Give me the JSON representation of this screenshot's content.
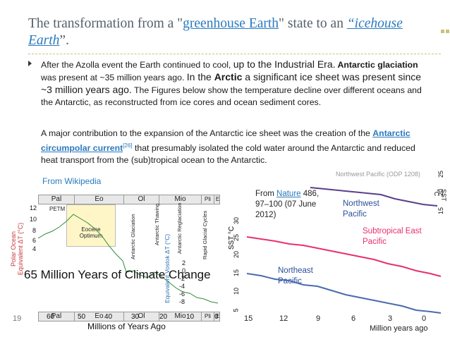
{
  "title": {
    "part1": "The transformation from a \"",
    "link1": "greenhouse Earth",
    "part2": "\" state to an ",
    "link2": "“icehouse Earth",
    "part3": "”."
  },
  "bullet": {
    "t1": "After the Azolla event the Earth continued to cool, ",
    "t2": "up to the Industrial Era.",
    "t3": "  Antarctic glaciation",
    "t4": " was present at ~35 million years ago. ",
    "t5": "In the ",
    "t6": "Arctic",
    "t7": " a significant  ice sheet was present since ~3 million years ago.",
    "t8": " The Figures below show the temperature decline over different oceans and the  Antarctic, as reconstructed from ice cores and ocean sediment cores."
  },
  "para2": {
    "t1": "A major contribution to the expansion of the Antarctic ice sheet was the creation of the ",
    "link": "Antarctic circumpolar current",
    "ref": "[26]",
    "t2": " that presumably isolated the cold water around the Antarctic and reduced heat transport from the (sub)tropical ocean to the  Antarctic."
  },
  "wiki": "From Wikipedia",
  "slide_number": "19",
  "left_figure": {
    "epochs": [
      "Pal",
      "Eo",
      "Ol",
      "Mio",
      "Pli",
      "E"
    ],
    "ylabel_top": "Polar Ocean Equivalent  ΔT (°C)",
    "yticks_top": [
      "12",
      "10",
      "8",
      "6",
      "4"
    ],
    "yticks_bottom": [
      "2",
      "0",
      "-2",
      "-4",
      "-6",
      "-8"
    ],
    "ylabel_bottom": "Equivalent Vostok ΔT (°C)",
    "xticks": [
      "60",
      "50",
      "40",
      "30",
      "20",
      "10",
      "0"
    ],
    "xlabel": "Millions of Years Ago",
    "big_label": "65 Million Years of Climate Change",
    "petm": "PETM",
    "eocene_optimum": "Eocene Optimum",
    "events": [
      "Antarctic Glaciation",
      "Antarctic Thawing",
      "Antarctic Reglaciation",
      "Rapid Glacial Cycles"
    ]
  },
  "right_figure": {
    "source_prefix": "From ",
    "source_link": "Nature",
    "source_rest": " 486, 97–100 (07 June 2012)",
    "series": [
      {
        "name": "Northwest Pacific",
        "color": "#5a3f8c"
      },
      {
        "name": "Subtropical East Pacific",
        "color": "#e8306e"
      },
      {
        "name": "Northeast Pacific",
        "color": "#4a6ab0"
      }
    ],
    "ylabel": "SST °C",
    "yticks": [
      "5",
      "10",
      "15",
      "20",
      "25",
      "30"
    ],
    "ylabel_right": "SST °C",
    "yticks_right": [
      "15",
      "20",
      "25"
    ],
    "xticks": [
      "15",
      "12",
      "9",
      "6",
      "3",
      "0"
    ],
    "xlabel": "Million years ago",
    "top_caption": "Northwest Pacific (ODP 1208)"
  }
}
